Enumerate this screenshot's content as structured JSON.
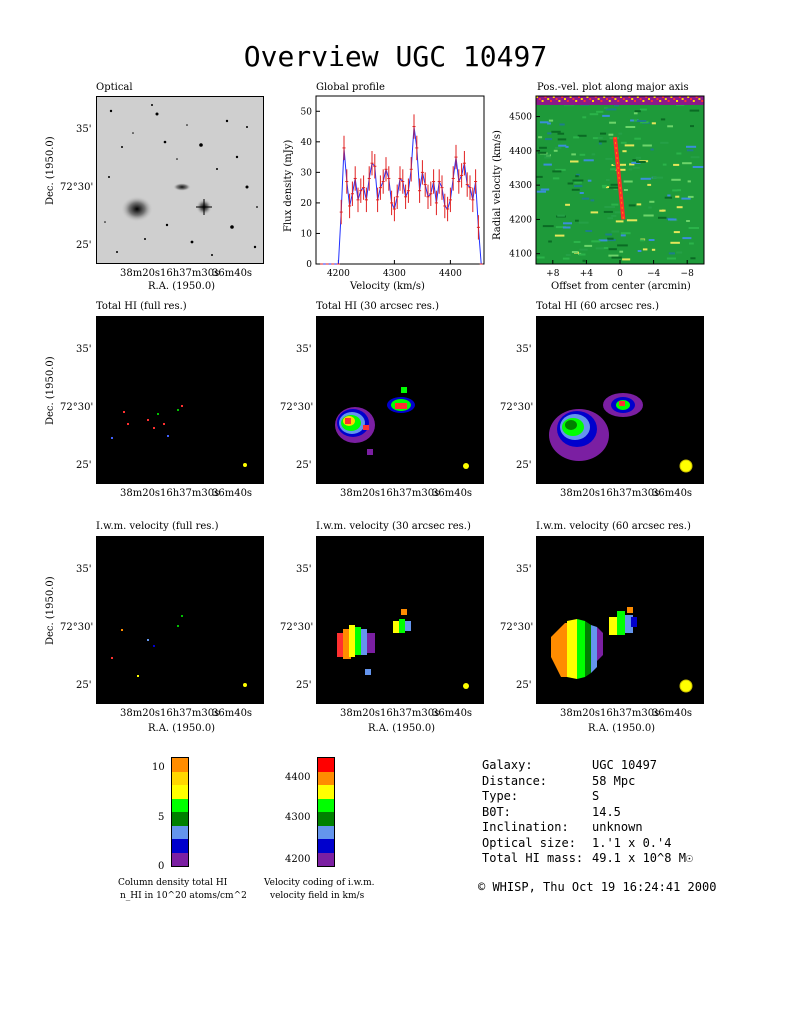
{
  "title": "Overview UGC 10497",
  "panels": {
    "optical": "Optical",
    "global_profile": "Global profile",
    "posvel": "Pos.-vel. plot along major axis",
    "hi_full": "Total HI (full res.)",
    "hi_30": "Total HI (30 arcsec res.)",
    "hi_60": "Total HI (60 arcsec res.)",
    "vel_full": "I.w.m. velocity (full res.)",
    "vel_30": "I.w.m. velocity (30 arcsec res.)",
    "vel_60": "I.w.m. velocity (60 arcsec res.)"
  },
  "axes": {
    "dec_label": "Dec. (1950.0)",
    "ra_label": "R.A. (1950.0)",
    "dec_ticks": [
      "35'",
      "72°30'",
      "25'"
    ],
    "ra_ticks": [
      "38m20s",
      "16h37m30s",
      "36m40s"
    ],
    "flux_label": "Flux density (mJy)",
    "velocity_label": "Velocity (km/s)",
    "radvel_label": "Radial velocity (km/s)",
    "offset_label": "Offset from center (arcmin)",
    "profile_yticks": [
      "0",
      "10",
      "20",
      "30",
      "40",
      "50"
    ],
    "profile_xticks": [
      "4200",
      "4300",
      "4400"
    ],
    "posvel_yticks": [
      "4500",
      "4400",
      "4300",
      "4200",
      "4100"
    ],
    "posvel_xticks": [
      "+8",
      "+4",
      "0",
      "−4",
      "−8"
    ]
  },
  "colorbars": {
    "density": {
      "ticks": [
        "10",
        "5",
        "0"
      ],
      "caption_line1": "Column density total HI",
      "caption_line2": "n_HI in 10^20 atoms/cm^2",
      "colors": [
        "#ff8c00",
        "#ffd700",
        "#ffff00",
        "#00ff00",
        "#008000",
        "#6495ed",
        "#0000cd",
        "#7b1fa2"
      ]
    },
    "velocity": {
      "ticks": [
        "4400",
        "4300",
        "4200"
      ],
      "caption_line1": "Velocity coding of i.w.m.",
      "caption_line2": "velocity field in km/s",
      "colors": [
        "#ff0000",
        "#ff8c00",
        "#ffff00",
        "#00ff00",
        "#008000",
        "#6495ed",
        "#0000cd",
        "#7b1fa2"
      ]
    }
  },
  "info": {
    "rows": [
      {
        "k": "Galaxy:",
        "v": "UGC 10497"
      },
      {
        "k": "Distance:",
        "v": "58 Mpc"
      },
      {
        "k": "Type:",
        "v": "S"
      },
      {
        "k": "B0T:",
        "v": "14.5"
      },
      {
        "k": "Inclination:",
        "v": "unknown"
      },
      {
        "k": "Optical size:",
        "v": "1.'1 x 0.'4"
      },
      {
        "k": "Total HI mass:",
        "v": "49.1 x 10^8 M☉"
      }
    ],
    "footer": "© WHISP, Thu Oct 19 16:24:41 2000"
  },
  "chart_data": [
    {
      "type": "line",
      "title": "Global profile",
      "xlabel": "Velocity (km/s)",
      "ylabel": "Flux density (mJy)",
      "xlim": [
        4160,
        4460
      ],
      "ylim": [
        0,
        55
      ],
      "x": [
        4170,
        4180,
        4190,
        4200,
        4205,
        4210,
        4215,
        4220,
        4225,
        4230,
        4235,
        4240,
        4245,
        4250,
        4255,
        4260,
        4265,
        4270,
        4275,
        4280,
        4285,
        4290,
        4295,
        4300,
        4305,
        4310,
        4315,
        4320,
        4325,
        4330,
        4335,
        4340,
        4345,
        4350,
        4355,
        4360,
        4365,
        4370,
        4375,
        4380,
        4385,
        4390,
        4395,
        4400,
        4405,
        4410,
        4415,
        4420,
        4425,
        4430,
        4435,
        4440,
        4445,
        4450,
        4455
      ],
      "values": [
        0,
        0,
        0,
        0,
        17,
        38,
        27,
        19,
        23,
        28,
        21,
        24,
        25,
        21,
        28,
        33,
        32,
        21,
        25,
        27,
        31,
        28,
        20,
        18,
        22,
        28,
        27,
        22,
        24,
        31,
        45,
        38,
        24,
        30,
        26,
        22,
        23,
        27,
        20,
        27,
        25,
        19,
        18,
        21,
        28,
        35,
        27,
        29,
        33,
        26,
        25,
        21,
        27,
        12,
        0
      ],
      "error": 4
    },
    {
      "type": "heatmap",
      "title": "Pos.-vel. plot along major axis",
      "xlabel": "Offset from center (arcmin)",
      "ylabel": "Radial velocity (km/s)",
      "xlim": [
        10,
        -10
      ],
      "ylim": [
        4070,
        4560
      ]
    }
  ]
}
